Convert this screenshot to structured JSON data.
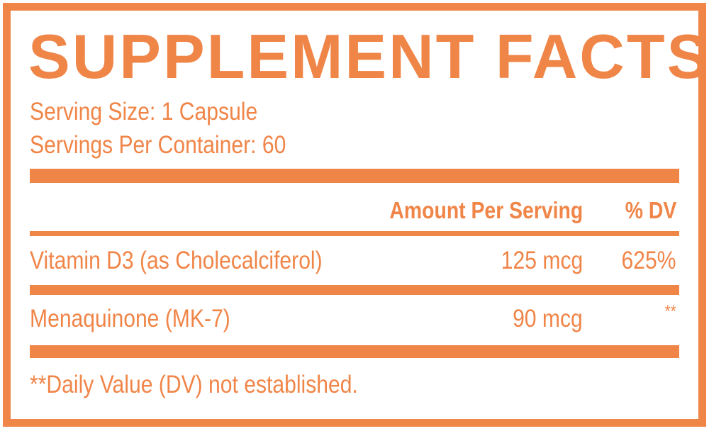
{
  "label": {
    "title": "SUPPLEMENT FACTS",
    "serving_size": "Serving Size: 1 Capsule",
    "servings_per_container": "Servings Per Container: 60",
    "header": {
      "amount": "Amount Per Serving",
      "dv": "% DV"
    },
    "rows": [
      {
        "name": "Vitamin D3 (as Cholecalciferol)",
        "amount": "125 mcg",
        "dv": "625%"
      },
      {
        "name": "Menaquinone (MK-7)",
        "amount": "90 mcg",
        "dv": "**"
      }
    ],
    "footnote": "**Daily Value (DV) not established.",
    "accent_color": "#f08548"
  }
}
